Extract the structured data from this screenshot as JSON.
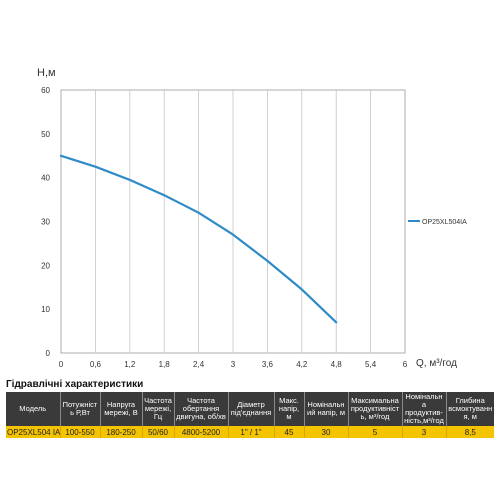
{
  "chart_data": {
    "type": "line",
    "ylabel": "H,м",
    "xlabel": "Q, м³/год",
    "xlim": [
      0,
      6
    ],
    "ylim": [
      0,
      60
    ],
    "x_ticks": [
      "0",
      "0,6",
      "1,2",
      "1,8",
      "2,4",
      "3",
      "3,6",
      "4,2",
      "4,8",
      "5,4",
      "6"
    ],
    "y_ticks": [
      "0",
      "10",
      "20",
      "30",
      "40",
      "50",
      "60"
    ],
    "x_tick_values": [
      0,
      0.6,
      1.2,
      1.8,
      2.4,
      3.0,
      3.6,
      4.2,
      4.8,
      5.4,
      6.0
    ],
    "y_tick_values": [
      0,
      10,
      20,
      30,
      40,
      50,
      60
    ],
    "grid": "vertical",
    "legend": "right",
    "series": [
      {
        "name": "OP25XL504IA",
        "color": "#2e8bc8",
        "x": [
          0,
          0.6,
          1.2,
          1.8,
          2.4,
          3.0,
          3.6,
          4.2,
          4.8
        ],
        "y": [
          45,
          42.5,
          39.5,
          36,
          32,
          27,
          21,
          14.5,
          7
        ]
      }
    ]
  },
  "table": {
    "title": "Гідравлічні характеристики",
    "headers": [
      "Модель",
      "Потужність Р,Вт",
      "Напруга мережі, В",
      "Частота мережі, Гц",
      "Частота обертання двигуна, об/хв",
      "Діаметр під'єднання",
      "Макс. напір, м",
      "Номінальний напір, м",
      "Максимальна продуктивність, м³/год",
      "Номінальна продуктив-ність,м³/год",
      "Глибина всмоктування, м"
    ],
    "row": [
      "OP25XL504 IA",
      "100-550",
      "180-250",
      "50/60",
      "4800-5200",
      "1\" / 1\"",
      "45",
      "30",
      "5",
      "3",
      "8,5"
    ]
  }
}
